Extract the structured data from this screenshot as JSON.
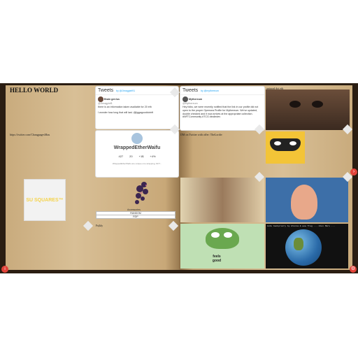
{
  "left_page": {
    "title": "HELLO WORLD",
    "link_text": "https://twitter.com/ChangpagesMau",
    "su_squares": "SU SQUARES™",
    "nft_name": "Accessories",
    "table_rows": [
      "RANDOM",
      "RDP"
    ],
    "caption": "Fu|kly"
  },
  "tweet1": {
    "heading": "Tweets",
    "by": "by @Jimagpiel91",
    "user": "Brain gen!us",
    "handle": "@JimagpieB",
    "lines": [
      "there is an information taken available for 20 eth",
      "I wonder how long that will last. @jiggagooddotnft"
    ]
  },
  "waifu": {
    "name": "WrappedEtherWaifu",
    "stats": [
      "427",
      "20",
      "+1$",
      "+4%"
    ],
    "desc": "WrappedEtherWaifu are unique one wrapping, NFT..."
  },
  "tweet2": {
    "heading": "Tweets",
    "by": "by @mythereum",
    "user": "Mythereum",
    "handle": "@Mythereum",
    "text": "Hey folks, we were recently notified that the link in our profile did not open to the proper Opensea Profile for Mythereum. We've updated, double checked and it now arrives at the appropriate collection. #NFTCommunity #TCG #indiedev"
  },
  "right_page": {
    "top_caption": "unigrad dot eth",
    "mid_caption": "DM on Twitter with offer: TheLordtv",
    "terminal_text": "Auto backprocry by Alicia & wow frog ... Alex Mars ...",
    "pepe_text": "feels good"
  },
  "colors": {
    "page": "#d2b78e",
    "spine": "#2a1d12",
    "accent_red": "#e2433a",
    "twitter_blue": "#1da1f2"
  },
  "icons": {
    "next": "chevron-right-icon",
    "info": "info-icon",
    "settings": "gear-icon"
  }
}
